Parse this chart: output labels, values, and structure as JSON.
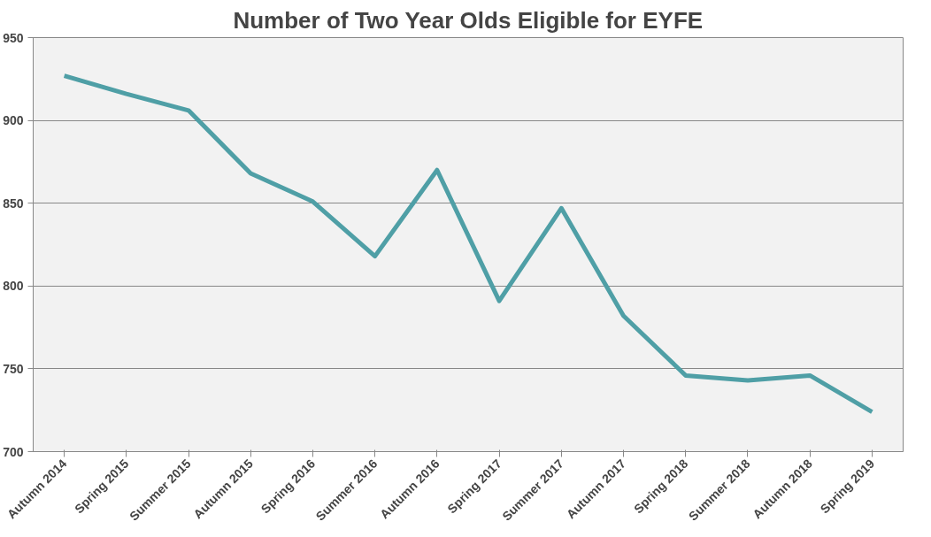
{
  "chart_data": {
    "type": "line",
    "title": "Number of Two Year Olds Eligible for EYFE",
    "categories": [
      "Autumn 2014",
      "Spring 2015",
      "Summer 2015",
      "Autumn 2015",
      "Spring 2016",
      "Summer 2016",
      "Autumn 2016",
      "Spring 2017",
      "Summer 2017",
      "Autumn 2017",
      "Spring 2018",
      "Summer 2018",
      "Autumn 2018",
      "Spring 2019"
    ],
    "series": [
      {
        "color": "#4f9fa6",
        "values": [
          927,
          916,
          906,
          868,
          851,
          818,
          870,
          791,
          847,
          782,
          746,
          743,
          746,
          724
        ]
      }
    ],
    "ylim": [
      700,
      950
    ],
    "yticks": [
      700,
      750,
      800,
      850,
      900,
      950
    ],
    "grid": "y",
    "marker": "none",
    "line_style": "solid"
  }
}
